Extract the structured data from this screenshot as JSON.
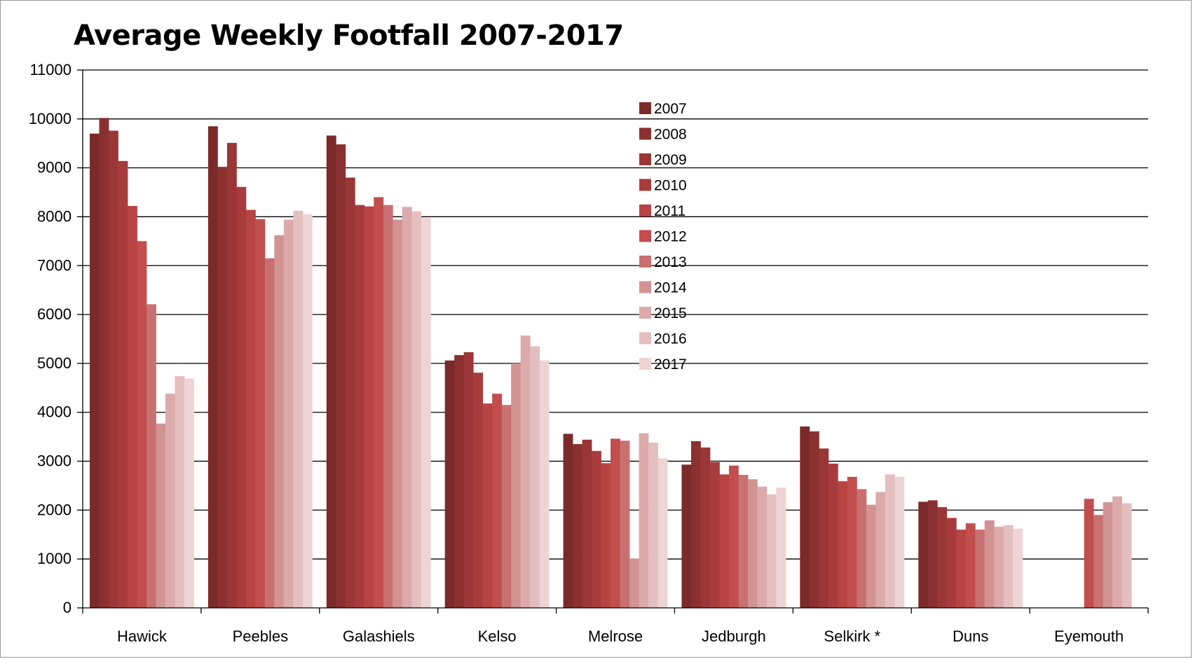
{
  "chart_data": {
    "type": "bar",
    "title": "Average Weekly Footfall 2007-2017",
    "xlabel": "",
    "ylabel": "",
    "ylim": [
      0,
      11000
    ],
    "yticks": [
      0,
      1000,
      2000,
      3000,
      4000,
      5000,
      6000,
      7000,
      8000,
      9000,
      10000,
      11000
    ],
    "grid": true,
    "legend_position": "center-top",
    "categories": [
      "Hawick",
      "Peebles",
      "Galashiels",
      "Kelso",
      "Melrose",
      "Jedburgh",
      "Selkirk *",
      "Duns",
      "Eyemouth"
    ],
    "series": [
      {
        "name": "2007",
        "color": "#7b2a2a",
        "values": [
          9700,
          9850,
          9660,
          5060,
          3560,
          2930,
          3710,
          2170,
          null
        ]
      },
      {
        "name": "2008",
        "color": "#8a3030",
        "values": [
          10020,
          9020,
          9480,
          5170,
          3350,
          3410,
          3610,
          2200,
          null
        ]
      },
      {
        "name": "2009",
        "color": "#9a3636",
        "values": [
          9760,
          9510,
          8800,
          5230,
          3440,
          3280,
          3260,
          2060,
          null
        ]
      },
      {
        "name": "2010",
        "color": "#a83c3c",
        "values": [
          9140,
          8610,
          8240,
          4810,
          3210,
          2980,
          2950,
          1840,
          null
        ]
      },
      {
        "name": "2011",
        "color": "#b74343",
        "values": [
          8220,
          8140,
          8210,
          4180,
          2960,
          2730,
          2590,
          1600,
          null
        ]
      },
      {
        "name": "2012",
        "color": "#c24e4e",
        "values": [
          7500,
          7950,
          8400,
          4380,
          3460,
          2910,
          2680,
          1730,
          2230
        ]
      },
      {
        "name": "2013",
        "color": "#c97070",
        "values": [
          6210,
          7150,
          8240,
          4150,
          3420,
          2720,
          2430,
          1600,
          1900
        ]
      },
      {
        "name": "2014",
        "color": "#d29393",
        "values": [
          3770,
          7620,
          7940,
          5000,
          1010,
          2630,
          2110,
          1790,
          2160
        ]
      },
      {
        "name": "2015",
        "color": "#dcaaaa",
        "values": [
          4380,
          7940,
          8200,
          5570,
          3570,
          2480,
          2370,
          1660,
          2280
        ]
      },
      {
        "name": "2016",
        "color": "#e4bfbf",
        "values": [
          4740,
          8120,
          8110,
          5350,
          3380,
          2320,
          2730,
          1690,
          2140
        ]
      },
      {
        "name": "2017",
        "color": "#eed4d4",
        "values": [
          4690,
          8050,
          7990,
          5060,
          3060,
          2460,
          2680,
          1620,
          null
        ]
      }
    ]
  }
}
